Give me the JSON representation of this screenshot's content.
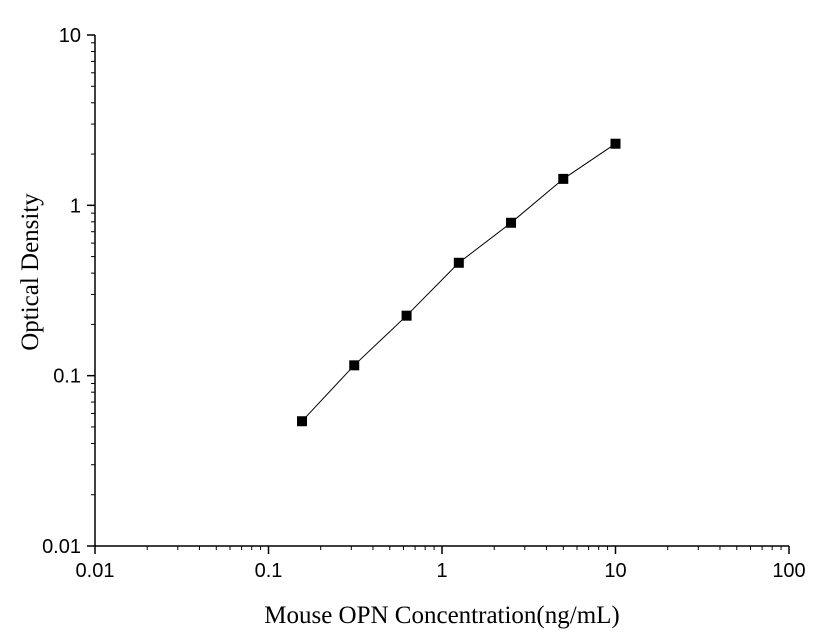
{
  "chart_data": {
    "type": "scatter",
    "title": "",
    "xlabel": "Mouse OPN Concentration(ng/mL)",
    "ylabel": "Optical Density",
    "xscale": "log",
    "yscale": "log",
    "xlim": [
      0.01,
      100
    ],
    "ylim": [
      0.01,
      10
    ],
    "x_ticks": [
      "0.01",
      "0.1",
      "1",
      "10",
      "100"
    ],
    "y_ticks": [
      "0.01",
      "0.1",
      "1",
      "10"
    ],
    "grid": false,
    "legend": "none",
    "series": [
      {
        "marker": "square",
        "color": "#000000",
        "connected": true,
        "x": [
          0.156,
          0.312,
          0.625,
          1.25,
          2.5,
          5,
          10
        ],
        "y": [
          0.054,
          0.115,
          0.225,
          0.46,
          0.79,
          1.43,
          2.3
        ]
      }
    ]
  }
}
